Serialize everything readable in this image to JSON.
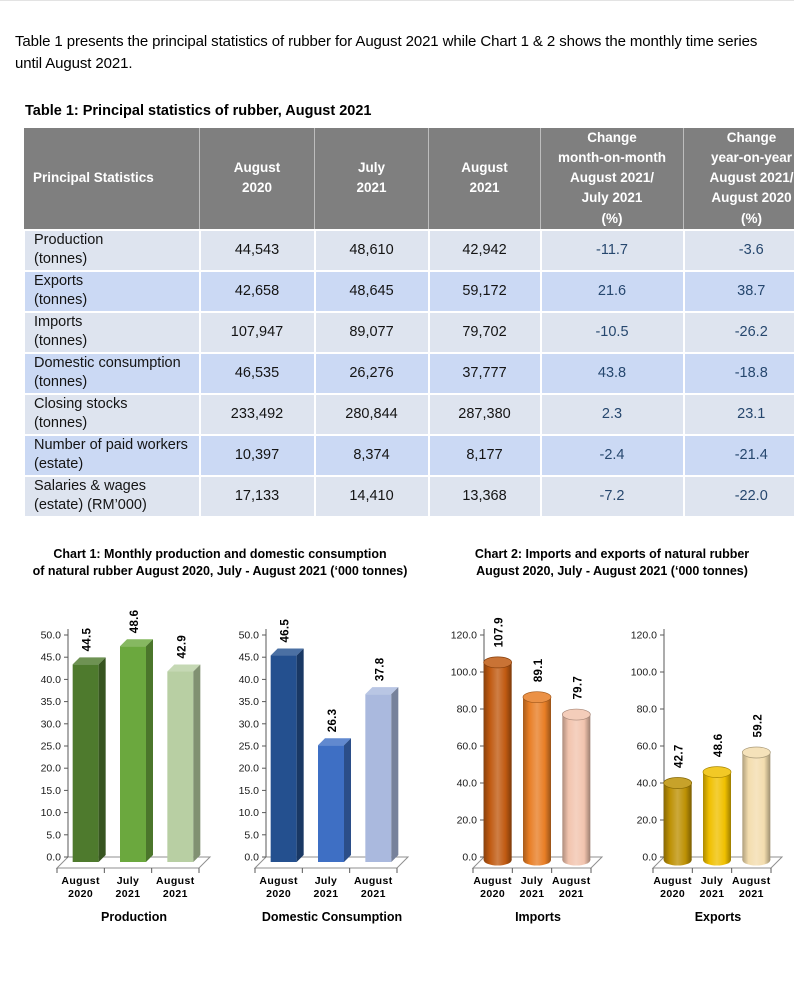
{
  "page": {
    "intro": "Table 1 presents the principal statistics of rubber for August 2021 while Chart 1 & 2 shows the monthly time series until August 2021.",
    "table_title": "Table 1: Principal statistics of rubber, August 2021"
  },
  "table": {
    "headers": [
      {
        "lines": [
          "Principal Statistics"
        ]
      },
      {
        "lines": [
          "August",
          "2020"
        ]
      },
      {
        "lines": [
          "July",
          "2021"
        ]
      },
      {
        "lines": [
          "August",
          "2021"
        ]
      },
      {
        "lines": [
          "Change",
          "month-on-month",
          "August 2021/",
          "July 2021",
          "(%)"
        ]
      },
      {
        "lines": [
          "Change",
          "year-on-year",
          "August 2021/",
          "August 2020",
          "(%)"
        ]
      }
    ],
    "rows": [
      {
        "label_lines": [
          "Production",
          "(tonnes)"
        ],
        "values": [
          "44,543",
          "48,610",
          "42,942"
        ],
        "changes": [
          "-11.7",
          "-3.6"
        ]
      },
      {
        "label_lines": [
          "Exports",
          "(tonnes)"
        ],
        "values": [
          "42,658",
          "48,645",
          "59,172"
        ],
        "changes": [
          "21.6",
          "38.7"
        ]
      },
      {
        "label_lines": [
          "Imports",
          "(tonnes)"
        ],
        "values": [
          "107,947",
          "89,077",
          "79,702"
        ],
        "changes": [
          "-10.5",
          "-26.2"
        ]
      },
      {
        "label_lines": [
          "Domestic consumption",
          "(tonnes)"
        ],
        "values": [
          "46,535",
          "26,276",
          "37,777"
        ],
        "changes": [
          "43.8",
          "-18.8"
        ]
      },
      {
        "label_lines": [
          "Closing stocks",
          "(tonnes)"
        ],
        "values": [
          "233,492",
          "280,844",
          "287,380"
        ],
        "changes": [
          "2.3",
          "23.1"
        ]
      },
      {
        "label_lines": [
          "Number of paid workers",
          "(estate)"
        ],
        "values": [
          "10,397",
          "8,374",
          "8,177"
        ],
        "changes": [
          "-2.4",
          "-21.4"
        ]
      },
      {
        "label_lines": [
          "Salaries & wages",
          "(estate) (RM’000)"
        ],
        "values": [
          "17,133",
          "14,410",
          "13,368"
        ],
        "changes": [
          "-7.2",
          "-22.0"
        ]
      }
    ]
  },
  "colors": {
    "table_header_bg": "#7F7F7F",
    "table_header_text": "#FFFFFF",
    "row_light_bg": "#DEE4EF",
    "row_blue_bg": "#CBD9F4",
    "change_text": "#26476E",
    "axis_line": "#595959"
  },
  "chart_data": [
    {
      "type": "bar",
      "title_lines": [
        "Chart 1: Monthly production and domestic consumption",
        "of natural rubber August 2020, July - August 2021 (‘000 tonnes)"
      ],
      "ylim": [
        0,
        50
      ],
      "ytick_step": 5,
      "grid": false,
      "legend": "none",
      "categories": [
        [
          "August",
          "2020"
        ],
        [
          "July",
          "2021"
        ],
        [
          "August",
          "2021"
        ]
      ],
      "panels": [
        {
          "axis_title": "Production",
          "values": [
            44.5,
            48.6,
            42.9
          ],
          "value_labels": [
            "44.5",
            "48.6",
            "42.9"
          ],
          "bar_style": "box3d",
          "bar_colors": [
            "#4E7A2D",
            "#6BA83E",
            "#B8CFA3"
          ]
        },
        {
          "axis_title": "Domestic Consumption",
          "values": [
            46.5,
            26.3,
            37.8
          ],
          "value_labels": [
            "46.5",
            "26.3",
            "37.8"
          ],
          "bar_style": "box3d",
          "bar_colors": [
            "#24508F",
            "#3E6FC4",
            "#AAB9DE"
          ]
        }
      ]
    },
    {
      "type": "bar",
      "title_lines": [
        "Chart 2: Imports and exports of natural rubber",
        "August 2020, July - August 2021 (‘000 tonnes)"
      ],
      "ylim": [
        0,
        120
      ],
      "ytick_step": 20,
      "grid": false,
      "legend": "none",
      "categories": [
        [
          "August",
          "2020"
        ],
        [
          "July",
          "2021"
        ],
        [
          "August",
          "2021"
        ]
      ],
      "panels": [
        {
          "axis_title": "Imports",
          "values": [
            107.9,
            89.1,
            79.7
          ],
          "value_labels": [
            "107.9",
            "89.1",
            "79.7"
          ],
          "bar_style": "cylinder",
          "bar_colors": [
            "#C05A11",
            "#E87E25",
            "#F2C4AE"
          ]
        },
        {
          "axis_title": "Exports",
          "values": [
            42.7,
            48.6,
            59.2
          ],
          "value_labels": [
            "42.7",
            "48.6",
            "59.2"
          ],
          "bar_style": "cylinder",
          "bar_colors": [
            "#BD9104",
            "#F0C000",
            "#F3DDAE"
          ]
        }
      ]
    }
  ]
}
